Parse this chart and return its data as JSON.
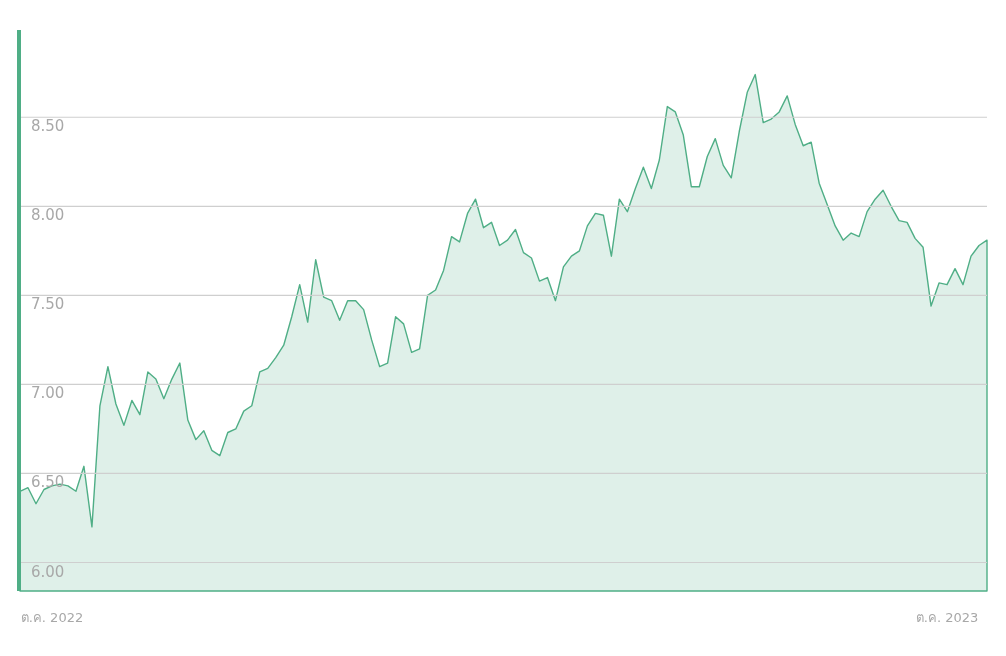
{
  "chart_data": {
    "type": "area",
    "color": "#4fae86",
    "grid": "y",
    "ylim": [
      5.84,
      8.99
    ],
    "yticks": [
      {
        "value": 6,
        "label": "6.00"
      },
      {
        "value": 6.5,
        "label": "6.50"
      },
      {
        "value": 7,
        "label": "7.00"
      },
      {
        "value": 7.5,
        "label": "7.50"
      },
      {
        "value": 8,
        "label": "8.00"
      },
      {
        "value": 8.5,
        "label": "8.50"
      }
    ],
    "categories": [
      null,
      null,
      null,
      null,
      "ต.ค. 2022",
      null,
      null,
      null,
      null,
      null,
      null,
      null,
      null,
      null,
      null,
      null,
      null,
      null,
      null,
      null,
      null,
      null,
      null,
      null,
      null,
      null,
      null,
      null,
      null,
      null,
      null,
      null,
      null,
      null,
      null,
      null,
      null,
      null,
      null,
      null,
      null,
      null,
      null,
      null,
      null,
      null,
      null,
      null,
      null,
      null,
      null,
      null,
      null,
      null,
      null,
      null,
      null,
      null,
      null,
      null,
      null,
      null,
      null,
      null,
      null,
      null,
      null,
      null,
      null,
      null,
      null,
      null,
      null,
      null,
      null,
      null,
      null,
      null,
      null,
      null,
      null,
      null,
      null,
      null,
      null,
      null,
      null,
      null,
      null,
      null,
      null,
      null,
      null,
      null,
      null,
      null,
      null,
      null,
      null,
      null,
      null,
      null,
      null,
      null,
      null,
      null,
      null,
      null,
      null,
      null,
      null,
      null,
      null,
      null,
      null,
      null,
      "ต.ค. 2023",
      null,
      null,
      null,
      null,
      null
    ],
    "values": [
      6.4,
      6.42,
      6.33,
      6.41,
      6.43,
      6.44,
      6.43,
      6.4,
      6.54,
      6.2,
      6.88,
      7.1,
      6.89,
      6.77,
      6.91,
      6.83,
      7.07,
      7.03,
      6.92,
      7.03,
      7.12,
      6.8,
      6.69,
      6.74,
      6.63,
      6.6,
      6.73,
      6.75,
      6.85,
      6.88,
      7.07,
      7.09,
      7.15,
      7.22,
      7.38,
      7.56,
      7.35,
      7.7,
      7.49,
      7.47,
      7.36,
      7.47,
      7.47,
      7.42,
      7.25,
      7.1,
      7.12,
      7.38,
      7.34,
      7.18,
      7.2,
      7.5,
      7.53,
      7.64,
      7.83,
      7.8,
      7.96,
      8.04,
      7.88,
      7.91,
      7.78,
      7.81,
      7.87,
      7.74,
      7.71,
      7.58,
      7.6,
      7.47,
      7.66,
      7.72,
      7.75,
      7.89,
      7.96,
      7.95,
      7.72,
      8.04,
      7.97,
      8.1,
      8.22,
      8.1,
      8.26,
      8.56,
      8.53,
      8.4,
      8.11,
      8.11,
      8.28,
      8.38,
      8.23,
      8.16,
      8.42,
      8.64,
      8.74,
      8.47,
      8.49,
      8.53,
      8.62,
      8.46,
      8.34,
      8.36,
      8.13,
      8.01,
      7.89,
      7.81,
      7.85,
      7.83,
      7.97,
      8.04,
      8.09,
      8.0,
      7.92,
      7.91,
      7.82,
      7.77,
      7.44,
      7.57,
      7.56,
      7.65,
      7.56,
      7.72,
      7.78,
      7.81
    ]
  }
}
